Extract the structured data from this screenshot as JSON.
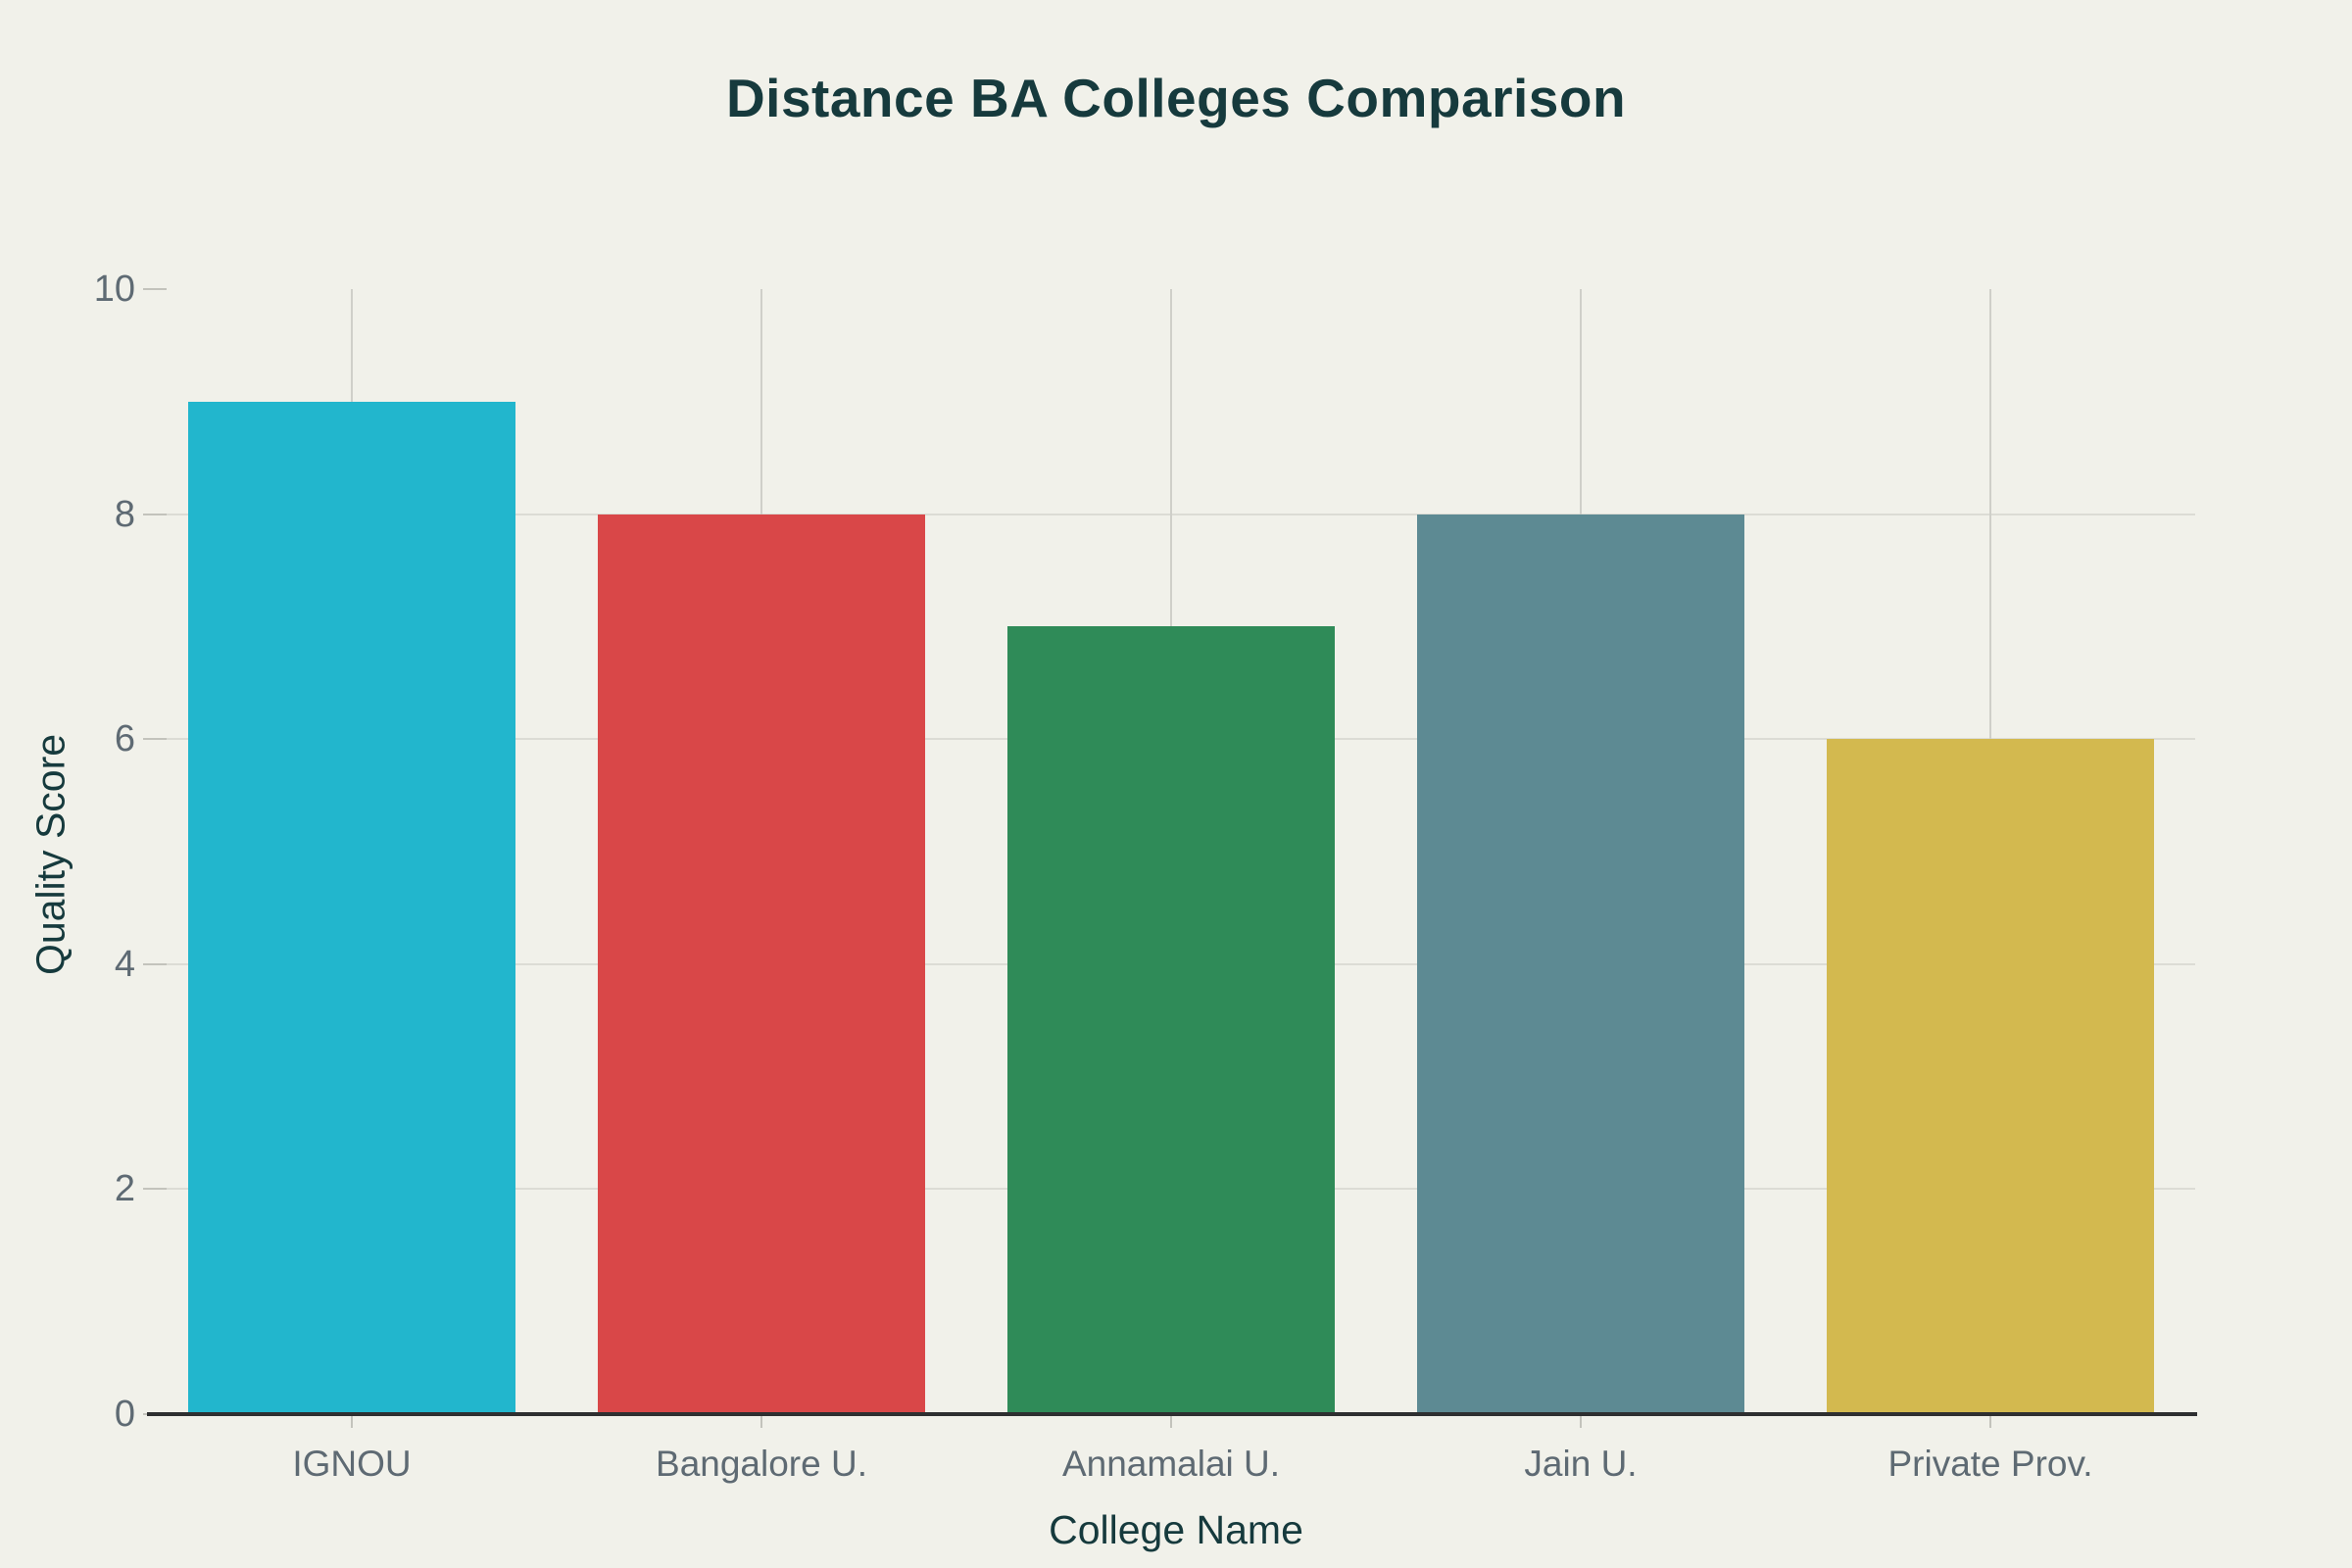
{
  "page": {
    "background": "#f1f1ea"
  },
  "chart_data": {
    "type": "bar",
    "title": "Distance BA Colleges Comparison",
    "xlabel": "College Name",
    "ylabel": "Quality Score",
    "categories": [
      "IGNOU",
      "Bangalore U.",
      "Annamalai U.",
      "Jain U.",
      "Private Prov."
    ],
    "values": [
      9,
      8,
      7,
      8,
      6
    ],
    "bar_colors": [
      "#22b6cd",
      "#d94748",
      "#2f8b58",
      "#5d8a93",
      "#d3b94f"
    ],
    "ylim": [
      0,
      10
    ],
    "yticks": [
      0,
      2,
      4,
      6,
      8,
      10
    ],
    "h_gridlines": [
      2,
      4,
      6,
      8
    ],
    "grid": true,
    "legend": false
  },
  "colors": {
    "title": "#163a3d",
    "axis_label": "#163a3d",
    "tick_label": "#5e6a73",
    "h_gridline": "#dcdcd5",
    "v_gridline": "#cfcfc9",
    "tick_mark": "#c3c3bc",
    "axis_line": "#2e2f30"
  }
}
